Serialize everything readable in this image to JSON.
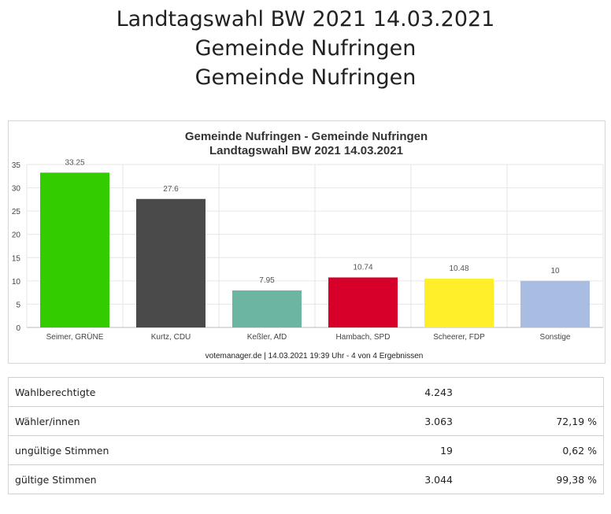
{
  "page": {
    "title_lines": [
      "Landtagswahl BW 2021 14.03.2021",
      "Gemeinde Nufringen",
      "Gemeinde Nufringen"
    ]
  },
  "chart_data": {
    "type": "bar",
    "title": "Gemeinde Nufringen - Gemeinde Nufringen",
    "subtitle": "Landtagswahl BW 2021 14.03.2021",
    "categories": [
      "Seimer, GRÜNE",
      "Kurtz, CDU",
      "Keßler, AfD",
      "Hambach, SPD",
      "Scheerer, FDP",
      "Sonstige"
    ],
    "values": [
      33.25,
      27.6,
      7.95,
      10.74,
      10.48,
      10
    ],
    "value_labels": [
      "33.25",
      "27.6",
      "7.95",
      "10.74",
      "10.48",
      "10"
    ],
    "colors": [
      "#33cc00",
      "#4a4a4a",
      "#6bb5a2",
      "#d6002a",
      "#ffee2a",
      "#a9bde3"
    ],
    "yticks": [
      "0",
      "5",
      "10",
      "15",
      "20",
      "25",
      "30",
      "35"
    ],
    "ylim": [
      0,
      35
    ],
    "grid": true,
    "footer": "votemanager.de | 14.03.2021 19:39 Uhr - 4 von 4 Ergebnissen"
  },
  "stats": [
    {
      "label": "Wahlberechtigte",
      "value": "4.243",
      "percent": ""
    },
    {
      "label": "Wähler/innen",
      "value": "3.063",
      "percent": "72,19 %"
    },
    {
      "label": "ungültige Stimmen",
      "value": "19",
      "percent": "0,62 %"
    },
    {
      "label": "gültige Stimmen",
      "value": "3.044",
      "percent": "99,38 %"
    }
  ]
}
